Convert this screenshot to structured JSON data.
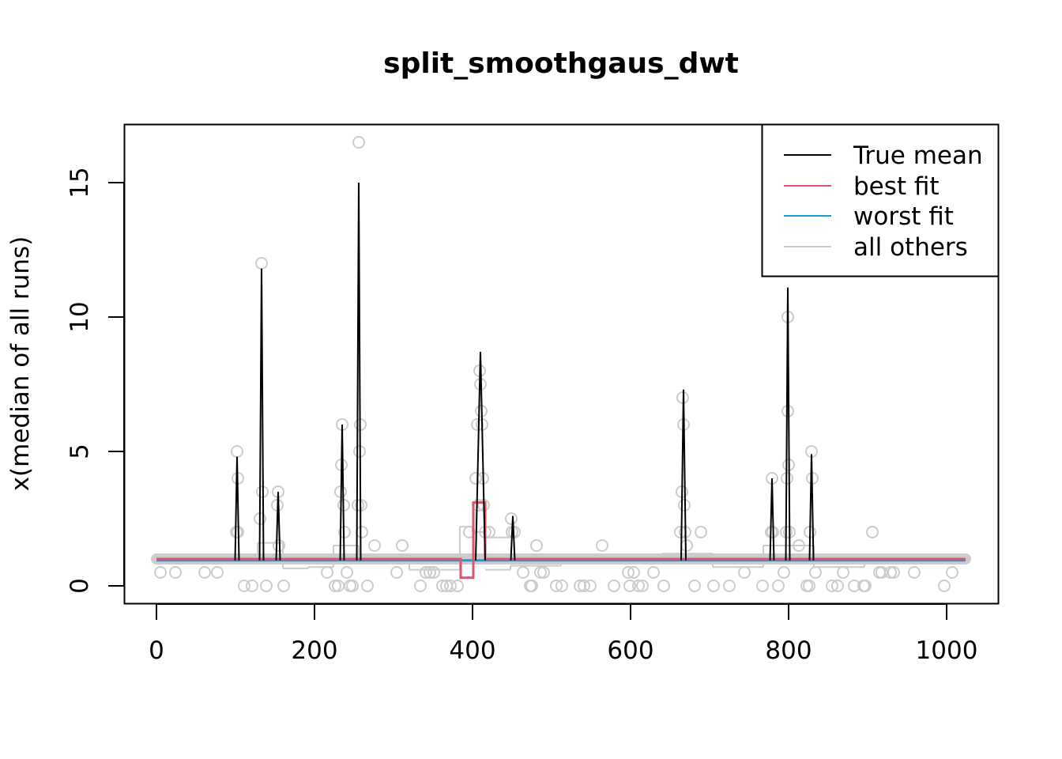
{
  "chart_data": {
    "type": "line",
    "title": "split_smoothgaus_dwt",
    "xlabel": "",
    "ylabel": "x(median of all runs)",
    "xlim": [
      0,
      1024
    ],
    "ylim": [
      0,
      16.5
    ],
    "x_ticks": [
      "0",
      "200",
      "400",
      "600",
      "800",
      "1000"
    ],
    "y_ticks": [
      "0",
      "5",
      "10",
      "15"
    ],
    "grid": false,
    "legend_position": "top-right",
    "colors": {
      "true_mean": "#000000",
      "best_fit": "#DF536B",
      "worst_fit": "#2297E6",
      "all_others": "#CCCCCC"
    },
    "legend": [
      "True mean",
      "best fit",
      "worst fit",
      "all others"
    ],
    "series": [
      {
        "name": "True mean",
        "baseline": 1,
        "peaks": [
          {
            "x": 102,
            "y": 4.8
          },
          {
            "x": 133,
            "y": 11.8
          },
          {
            "x": 154,
            "y": 3.5
          },
          {
            "x": 235,
            "y": 6.0
          },
          {
            "x": 256,
            "y": 15.0
          },
          {
            "x": 410,
            "y": 8.7,
            "width": 6
          },
          {
            "x": 451,
            "y": 2.6
          },
          {
            "x": 667,
            "y": 7.3,
            "width": 3
          },
          {
            "x": 779,
            "y": 4.0
          },
          {
            "x": 799,
            "y": 11.1
          },
          {
            "x": 829,
            "y": 4.9
          }
        ]
      },
      {
        "name": "best fit",
        "segments": [
          {
            "x": [
              0,
              385
            ],
            "y": 1.0
          },
          {
            "x": [
              385,
              401
            ],
            "y": 0.3
          },
          {
            "x": [
              401,
              416
            ],
            "y": 3.1
          },
          {
            "x": [
              416,
              1024
            ],
            "y": 1.0
          }
        ]
      },
      {
        "name": "worst fit",
        "segments": [
          {
            "x": [
              0,
              1024
            ],
            "y": 0.95
          }
        ]
      },
      {
        "name": "all others",
        "segments": [
          {
            "x": [
              0,
              128
            ],
            "y": 1.0
          },
          {
            "x": [
              128,
              160
            ],
            "y": 1.6
          },
          {
            "x": [
              160,
              192
            ],
            "y": 0.65
          },
          {
            "x": [
              192,
              224
            ],
            "y": 0.7
          },
          {
            "x": [
              224,
              256
            ],
            "y": 1.5
          },
          {
            "x": [
              256,
              320
            ],
            "y": 1.1
          },
          {
            "x": [
              320,
              384
            ],
            "y": 0.6
          },
          {
            "x": [
              384,
              400
            ],
            "y": 2.2
          },
          {
            "x": [
              400,
              416
            ],
            "y": 2.0
          },
          {
            "x": [
              416,
              448
            ],
            "y": 1.8
          },
          {
            "x": [
              416,
              448
            ],
            "y": 0.6
          },
          {
            "x": [
              448,
              512
            ],
            "y": 0.75
          },
          {
            "x": [
              512,
              640
            ],
            "y": 1.0
          },
          {
            "x": [
              640,
              704
            ],
            "y": 1.2
          },
          {
            "x": [
              704,
              768
            ],
            "y": 0.7
          },
          {
            "x": [
              768,
              832
            ],
            "y": 1.5
          },
          {
            "x": [
              832,
              896
            ],
            "y": 0.7
          },
          {
            "x": [
              896,
              1024
            ],
            "y": 1.0
          }
        ]
      },
      {
        "name": "observations",
        "points": [
          [
            5,
            0.5
          ],
          [
            24,
            0.5
          ],
          [
            61,
            0.5
          ],
          [
            77,
            0.5
          ],
          [
            101,
            2
          ],
          [
            102,
            5
          ],
          [
            103,
            4
          ],
          [
            103,
            2
          ],
          [
            111,
            0
          ],
          [
            121,
            0
          ],
          [
            131,
            2.5
          ],
          [
            133,
            12
          ],
          [
            134,
            3.5
          ],
          [
            139,
            0
          ],
          [
            153,
            3
          ],
          [
            154,
            3.5
          ],
          [
            155,
            1.5
          ],
          [
            161,
            0
          ],
          [
            216,
            0.5
          ],
          [
            226,
            0
          ],
          [
            230,
            0
          ],
          [
            233,
            3.5
          ],
          [
            234,
            4.5
          ],
          [
            235,
            6
          ],
          [
            237,
            3
          ],
          [
            238,
            2
          ],
          [
            241,
            0.5
          ],
          [
            245,
            0
          ],
          [
            248,
            0
          ],
          [
            255,
            3
          ],
          [
            256,
            16.5
          ],
          [
            257,
            5
          ],
          [
            258,
            6
          ],
          [
            259,
            3
          ],
          [
            260,
            2
          ],
          [
            267,
            0
          ],
          [
            276,
            1.5
          ],
          [
            304,
            0.5
          ],
          [
            311,
            1.5
          ],
          [
            334,
            0
          ],
          [
            341,
            0.5
          ],
          [
            346,
            0.5
          ],
          [
            351,
            0.5
          ],
          [
            362,
            0
          ],
          [
            367,
            0
          ],
          [
            372,
            0
          ],
          [
            381,
            0
          ],
          [
            396,
            2
          ],
          [
            404,
            4
          ],
          [
            406,
            6
          ],
          [
            407,
            3
          ],
          [
            409,
            8
          ],
          [
            410,
            7.5
          ],
          [
            411,
            6.5
          ],
          [
            412,
            6
          ],
          [
            413,
            4
          ],
          [
            414,
            3
          ],
          [
            416,
            2
          ],
          [
            421,
            2
          ],
          [
            449,
            2.5
          ],
          [
            450,
            2
          ],
          [
            453,
            2
          ],
          [
            464,
            0.5
          ],
          [
            473,
            0
          ],
          [
            475,
            0
          ],
          [
            481,
            1.5
          ],
          [
            486,
            0.5
          ],
          [
            490,
            0.5
          ],
          [
            506,
            0
          ],
          [
            513,
            0
          ],
          [
            536,
            0
          ],
          [
            541,
            0
          ],
          [
            549,
            0
          ],
          [
            564,
            1.5
          ],
          [
            579,
            0
          ],
          [
            597,
            0.5
          ],
          [
            599,
            0
          ],
          [
            604,
            0.5
          ],
          [
            610,
            0
          ],
          [
            615,
            0
          ],
          [
            629,
            0.5
          ],
          [
            642,
            0
          ],
          [
            663,
            2
          ],
          [
            665,
            3.5
          ],
          [
            666,
            7
          ],
          [
            667,
            6
          ],
          [
            668,
            3
          ],
          [
            669,
            2
          ],
          [
            671,
            1.5
          ],
          [
            681,
            0
          ],
          [
            689,
            2
          ],
          [
            705,
            0
          ],
          [
            725,
            0
          ],
          [
            744,
            0.5
          ],
          [
            767,
            0
          ],
          [
            778,
            2
          ],
          [
            779,
            4
          ],
          [
            780,
            2
          ],
          [
            787,
            0
          ],
          [
            794,
            0.5
          ],
          [
            797,
            2
          ],
          [
            798,
            4
          ],
          [
            799,
            10
          ],
          [
            799,
            6.5
          ],
          [
            800,
            4.5
          ],
          [
            801,
            2
          ],
          [
            813,
            1.5
          ],
          [
            823,
            0
          ],
          [
            826,
            0
          ],
          [
            827,
            2
          ],
          [
            829,
            5
          ],
          [
            830,
            4
          ],
          [
            834,
            0.5
          ],
          [
            855,
            0
          ],
          [
            862,
            0
          ],
          [
            869,
            0.5
          ],
          [
            883,
            0
          ],
          [
            895,
            0
          ],
          [
            897,
            0
          ],
          [
            906,
            2
          ],
          [
            915,
            0.5
          ],
          [
            918,
            0.5
          ],
          [
            929,
            0.5
          ],
          [
            933,
            0.5
          ],
          [
            959,
            0.5
          ],
          [
            997,
            0
          ],
          [
            1007,
            0.5
          ]
        ]
      }
    ]
  }
}
